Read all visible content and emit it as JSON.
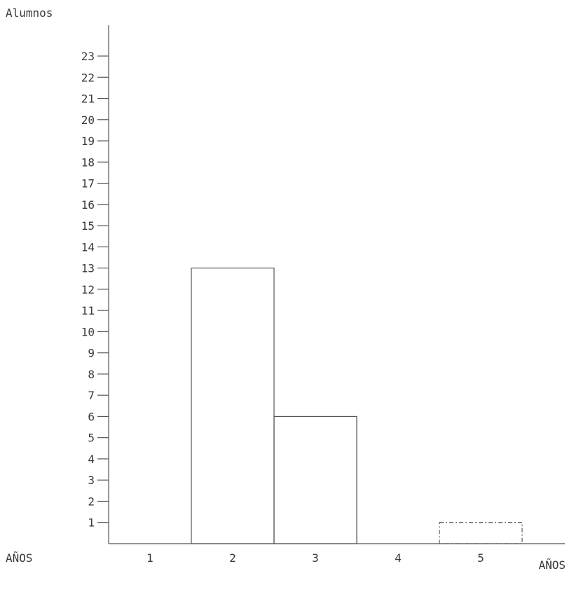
{
  "chart_data": {
    "type": "bar",
    "title": "",
    "ylabel": "Alumnos",
    "xlabel_left": "AÑOS",
    "xlabel_right": "AÑOS",
    "categories": [
      "1",
      "2",
      "3",
      "4",
      "5"
    ],
    "values": [
      0,
      13,
      6,
      0,
      1
    ],
    "yticks": [
      1,
      2,
      3,
      4,
      5,
      6,
      7,
      8,
      9,
      10,
      11,
      12,
      13,
      14,
      15,
      16,
      17,
      18,
      19,
      20,
      21,
      22,
      23
    ],
    "ylim": [
      0,
      23
    ],
    "grid": false,
    "legend": "none",
    "colors": {
      "line": "#555555",
      "text": "#3a3a3a",
      "background": "#ffffff"
    }
  }
}
